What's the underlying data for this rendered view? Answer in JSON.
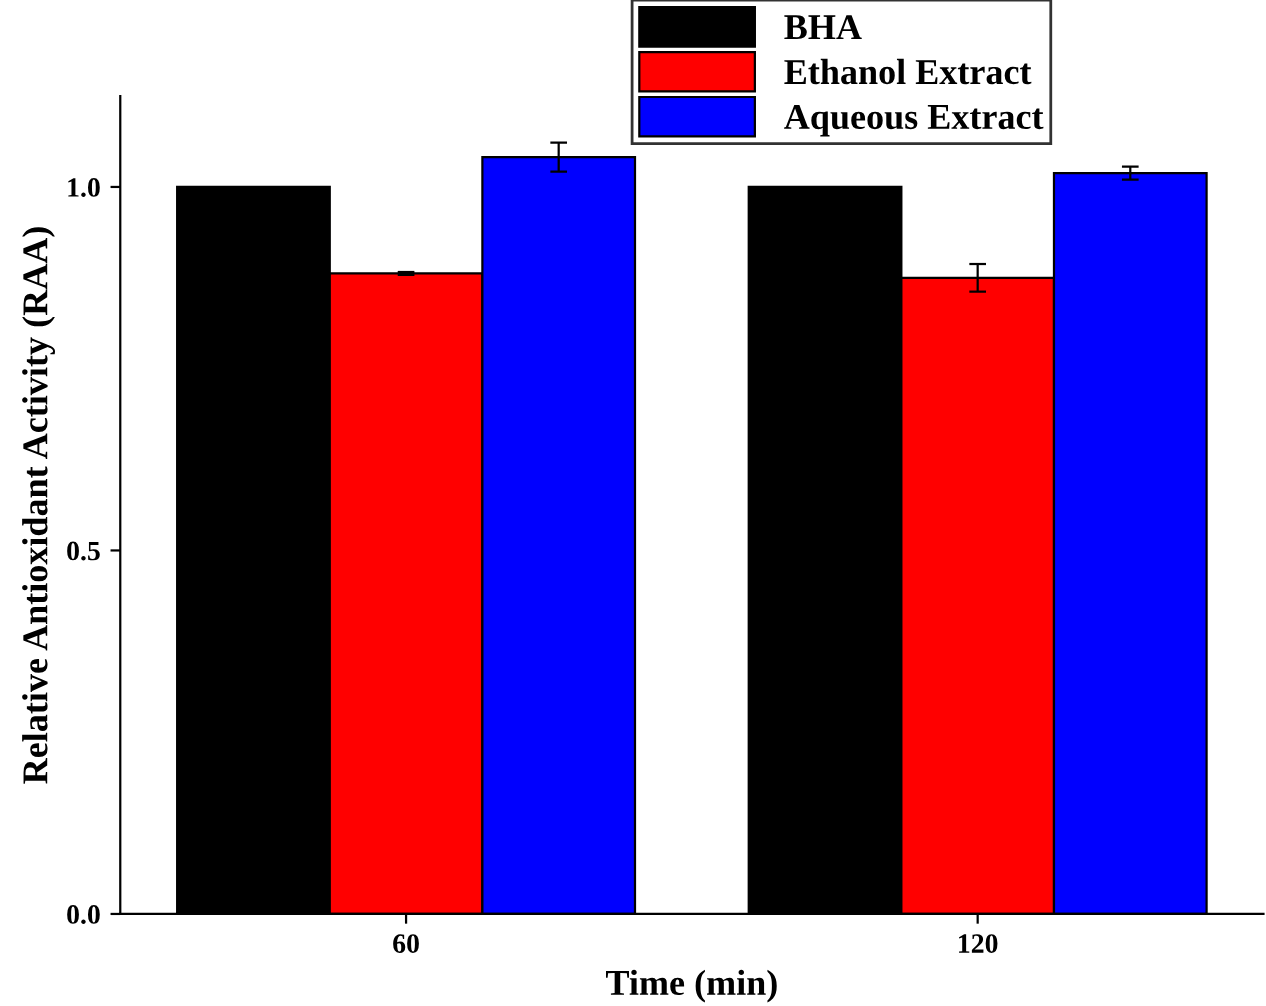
{
  "chart_data": {
    "type": "bar",
    "xlabel": "Time (min)",
    "ylabel": "Relative Antioxidant Activity (RAA)",
    "categories": [
      "60",
      "120"
    ],
    "series": [
      {
        "name": "BHA",
        "color": "#000000",
        "values": [
          1.0,
          1.0
        ]
      },
      {
        "name": "Ethanol Extract",
        "color": "#ff0000",
        "values": [
          0.881,
          0.875
        ],
        "errors": [
          0.002,
          0.019
        ]
      },
      {
        "name": "Aqueous Extract",
        "color": "#0000ff",
        "values": [
          1.041,
          1.019
        ],
        "errors": [
          0.02,
          0.009
        ]
      }
    ],
    "ylim": [
      0,
      1.125
    ],
    "yticks": [
      {
        "value": 0,
        "label": "0.0"
      },
      {
        "value": 0.5,
        "label": "0.5"
      },
      {
        "value": 1,
        "label": "1.0"
      }
    ],
    "grid": false,
    "legend": "top right"
  }
}
